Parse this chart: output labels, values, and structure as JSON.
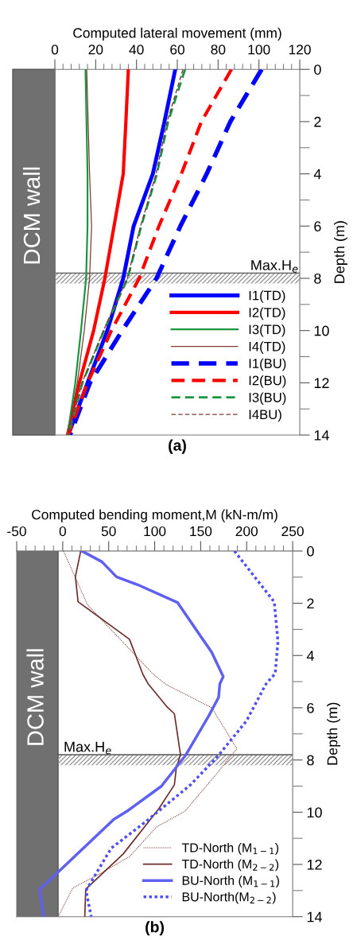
{
  "chart_data": [
    {
      "type": "line",
      "title": "(a)",
      "xlabel": "Computed lateral movement (mm)",
      "ylabel": "Depth (m)",
      "xlim": [
        0,
        120
      ],
      "xticks": [
        0,
        20,
        40,
        60,
        80,
        100,
        120
      ],
      "ylim": [
        14,
        0
      ],
      "yticks": [
        0,
        2,
        4,
        6,
        8,
        10,
        12,
        14
      ],
      "grid": false,
      "legend": "bottom right",
      "marker": "none",
      "annotations": [
        "DCM wall"
      ],
      "bands": [
        {
          "axis": "y",
          "from": 7.8,
          "to": 8.2,
          "label": "Max.H$_{e}$",
          "color": "#999999"
        }
      ],
      "ref_lines": [
        {
          "axis": "y",
          "value": 7.8,
          "color": "#555555"
        }
      ],
      "series": [
        {
          "name": "I1(TD)",
          "color": "#0000ff",
          "line_style": "solid",
          "x": [
            59,
            53.7,
            48,
            38.6,
            33.5,
            25.7,
            16,
            6.6
          ],
          "values": [
            0,
            2,
            4,
            6,
            8,
            10,
            12,
            14
          ]
        },
        {
          "name": "I2(TD)",
          "color": "#ff0000",
          "line_style": "solid",
          "x": [
            36,
            34.8,
            33.5,
            29,
            24.5,
            19,
            12,
            6.2
          ],
          "values": [
            0,
            2,
            4,
            6,
            8,
            10,
            12,
            14
          ]
        },
        {
          "name": "I3(TD)",
          "color": "#1a9641",
          "line_style": "solid",
          "x": [
            15,
            15.5,
            16,
            16,
            15.3,
            12.8,
            10,
            6.2
          ],
          "values": [
            0,
            2,
            4,
            6,
            8,
            10,
            12,
            14
          ]
        },
        {
          "name": "I4(TD)",
          "color": "#7b3b35",
          "line_style": "solid",
          "x": [
            15.6,
            16.3,
            17,
            18,
            17,
            14.4,
            11,
            6.2
          ],
          "values": [
            0,
            2,
            4,
            6,
            8,
            10,
            12,
            14
          ]
        },
        {
          "name": "I1(BU)",
          "color": "#0000ff",
          "line_style": "dashed",
          "x": [
            101.3,
            86,
            74.4,
            61.5,
            49.8,
            33,
            17.2,
            7.4
          ],
          "values": [
            0,
            2,
            4,
            6,
            8,
            10,
            12,
            14
          ]
        },
        {
          "name": "I2(BU)",
          "color": "#ff0000",
          "line_style": "dashed",
          "x": [
            86.5,
            71.8,
            62,
            51,
            41.3,
            27.7,
            16,
            6.6
          ],
          "values": [
            0,
            2,
            4,
            6,
            8,
            10,
            12,
            14
          ]
        },
        {
          "name": "I3(BU)",
          "color": "#1a9641",
          "line_style": "dashed",
          "x": [
            63.8,
            55.5,
            50,
            42.3,
            35.7,
            24,
            13.5,
            6.6
          ],
          "values": [
            0,
            2,
            4,
            6,
            8,
            10,
            12,
            14
          ]
        },
        {
          "name": "I4BU)",
          "color": "#7b3b35",
          "line_style": "dashed",
          "x": [
            62.8,
            55,
            49.6,
            42,
            35.5,
            23.8,
            13.3,
            6.6
          ],
          "values": [
            0,
            2,
            4,
            6,
            8,
            10,
            12,
            14
          ]
        }
      ]
    },
    {
      "type": "line",
      "title": "(b)",
      "xlabel": "Computed bending moment,M (kN-m/m)",
      "ylabel": "Depth (m)",
      "xlim": [
        -50,
        250
      ],
      "xticks": [
        -50,
        0,
        50,
        100,
        150,
        200,
        250
      ],
      "ylim": [
        14,
        0
      ],
      "yticks": [
        0,
        2,
        4,
        6,
        8,
        10,
        12,
        14
      ],
      "grid": false,
      "legend": "bottom right",
      "marker": "none",
      "annotations": [
        "DCM wall"
      ],
      "bands": [
        {
          "axis": "y",
          "from": 7.8,
          "to": 8.2,
          "label": "Max.H$_{e}$",
          "color": "#999999"
        },
        {
          "axis": "x",
          "from": -50,
          "to": -5,
          "color": "#707070"
        }
      ],
      "ref_lines": [
        {
          "axis": "y",
          "value": 7.8,
          "color": "#555555"
        }
      ],
      "series": [
        {
          "name": "TD-North (M$_{1−1}$)",
          "color": "#8b4a44",
          "line_style": "dotted",
          "x": [
            0.9,
            26.8,
            97.4,
            111.5,
            162,
            189.5,
            182,
            168,
            133,
            101.7,
            72.7,
            38,
            11,
            -5
          ],
          "values": [
            0,
            2.05,
            4.68,
            5.09,
            6,
            7.57,
            7.88,
            8.5,
            9.96,
            10.57,
            11.7,
            12.4,
            12.9,
            14
          ]
        },
        {
          "name": "TD-North (M$_{2−2}$)",
          "color": "#6b2d2a",
          "line_style": "solid",
          "x": [
            19.6,
            13.8,
            16.7,
            72.6,
            87.3,
            93,
            113,
            121.4,
            128,
            123.4,
            121.4,
            104.6,
            65.7,
            25,
            24
          ],
          "values": [
            0,
            0.98,
            1.94,
            3.38,
            4.73,
            5.09,
            5.95,
            6.23,
            7.78,
            8.34,
            8.95,
            9.86,
            11.6,
            12.95,
            14
          ]
        },
        {
          "name": "BU-North (M$_{1−1}$)",
          "color": "#5f5ff0",
          "line_style": "solid",
          "x": [
            21,
            42.6,
            58.5,
            81.6,
            124.8,
            162,
            174.5,
            170.8,
            169.5,
            158.8,
            133.4,
            107.4,
            70,
            55.6,
            -4.9,
            -25,
            -20.7
          ],
          "values": [
            0,
            0.41,
            0.99,
            1.29,
            1.97,
            3.88,
            4.81,
            5.09,
            5.6,
            6.31,
            7.83,
            9,
            9.96,
            10.27,
            12.29,
            12.95,
            14
          ]
        },
        {
          "name": "BU-North(M$_{2−2}$)",
          "color": "#4f4ff5",
          "line_style": "dotted",
          "x": [
            186.7,
            230,
            234,
            231,
            221,
            199.7,
            168,
            139,
            90,
            52.7,
            25.3,
            31
          ],
          "values": [
            0,
            1.95,
            3.47,
            4.69,
            5.09,
            6.51,
            7.88,
            8.95,
            10.37,
            11.38,
            13,
            14
          ]
        }
      ]
    }
  ]
}
